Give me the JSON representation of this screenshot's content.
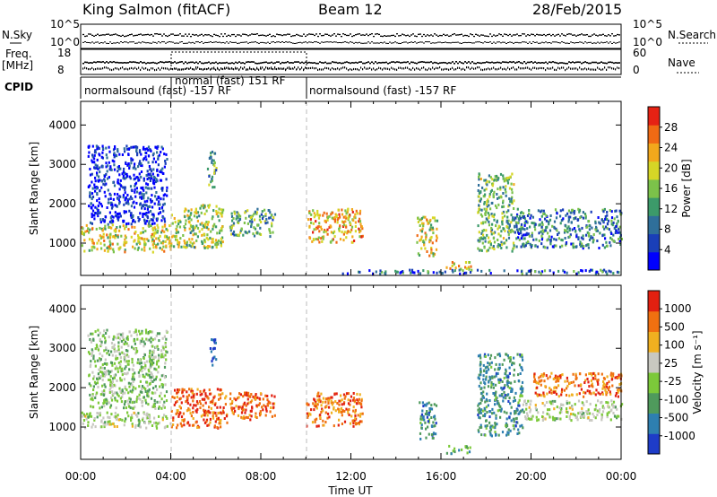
{
  "header": {
    "station": "King Salmon (fitACF)",
    "beam": "Beam 12",
    "date": "28/Feb/2015"
  },
  "summary_panels": {
    "nsky_label": "N.Sky",
    "nsearch_label": "N.Search",
    "nsky_ticks": [
      "10^5",
      "10^0"
    ],
    "nsearch_ticks": [
      "10^5",
      "10^0"
    ],
    "freq_label": "Freq.",
    "freq_unit": "[MHz]",
    "freq_ticks": [
      "18",
      "8"
    ],
    "nave_label": "Nave",
    "nave_ticks": [
      "60",
      "0"
    ],
    "cpid_label": "CPID",
    "cpid_segments": [
      {
        "label": "normalsound (fast) -157 RF",
        "start": 0,
        "end": 4
      },
      {
        "label": "normal (fast) 151 RF",
        "start": 4,
        "end": 10
      },
      {
        "label": "normalsound (fast) -157 RF",
        "start": 10,
        "end": 24
      }
    ]
  },
  "chart_data": [
    {
      "type": "heatmap",
      "name": "power",
      "ylabel": "Slant Range [km]",
      "xlabel": "Time UT",
      "ylim": [
        180,
        4600
      ],
      "xlim": [
        0,
        24
      ],
      "yticks": [
        "1000",
        "2000",
        "3000",
        "4000"
      ],
      "xticks": [
        "00:00",
        "04:00",
        "08:00",
        "12:00",
        "16:00",
        "20:00",
        "00:00"
      ],
      "colorbar": {
        "label": "Power [dB]",
        "ticks": [
          "4",
          "8",
          "12",
          "16",
          "20",
          "24",
          "28"
        ],
        "colors": [
          "#0000ff",
          "#1a3fb8",
          "#2f6f9a",
          "#3c9a6a",
          "#7cc24a",
          "#d6d626",
          "#f2a81c",
          "#f06a14",
          "#e62214"
        ]
      },
      "regions": [
        {
          "t0": 0.0,
          "t1": 4.0,
          "r0": 800,
          "r1": 1500,
          "level": 0.6
        },
        {
          "t0": 0.3,
          "t1": 3.8,
          "r0": 1500,
          "r1": 3500,
          "level": 0.1
        },
        {
          "t0": 4.0,
          "t1": 6.3,
          "r0": 900,
          "r1": 2000,
          "level": 0.55
        },
        {
          "t0": 5.6,
          "t1": 6.0,
          "r0": 2400,
          "r1": 3400,
          "level": 0.4
        },
        {
          "t0": 6.6,
          "t1": 8.6,
          "r0": 1200,
          "r1": 1900,
          "level": 0.4
        },
        {
          "t0": 10.0,
          "t1": 12.5,
          "r0": 1050,
          "r1": 1900,
          "level": 0.7
        },
        {
          "t0": 14.9,
          "t1": 15.8,
          "r0": 700,
          "r1": 1700,
          "level": 0.6
        },
        {
          "t0": 16.2,
          "t1": 17.3,
          "r0": 350,
          "r1": 550,
          "level": 0.7
        },
        {
          "t0": 17.6,
          "t1": 19.2,
          "r0": 800,
          "r1": 2800,
          "level": 0.45
        },
        {
          "t0": 19.2,
          "t1": 24.0,
          "r0": 900,
          "r1": 1900,
          "level": 0.3
        },
        {
          "t0": 11.5,
          "t1": 24.0,
          "r0": 250,
          "r1": 350,
          "level": 0.25
        }
      ]
    },
    {
      "type": "heatmap",
      "name": "velocity",
      "ylabel": "Slant Range [km]",
      "xlabel": "Time UT",
      "ylim": [
        180,
        4600
      ],
      "xlim": [
        0,
        24
      ],
      "yticks": [
        "1000",
        "2000",
        "3000",
        "4000"
      ],
      "xticks": [
        "00:00",
        "04:00",
        "08:00",
        "12:00",
        "16:00",
        "20:00",
        "00:00"
      ],
      "colorbar": {
        "label": "Velocity [m s⁻¹]",
        "ticks": [
          "1000",
          "500",
          "100",
          "25",
          "-25",
          "-100",
          "-500",
          "-1000"
        ],
        "colors": [
          "#1e3cc8",
          "#2e7fb0",
          "#4f9a5c",
          "#7cc93a",
          "#c8c8c0",
          "#f0b020",
          "#f07010",
          "#e22010"
        ]
      },
      "regions": [
        {
          "t0": 0.0,
          "t1": 4.0,
          "r0": 1000,
          "r1": 1400,
          "level": 0.5
        },
        {
          "t0": 0.3,
          "t1": 3.8,
          "r0": 1500,
          "r1": 3500,
          "level": 0.45
        },
        {
          "t0": 4.0,
          "t1": 6.5,
          "r0": 1000,
          "r1": 2000,
          "level": 0.85
        },
        {
          "t0": 5.7,
          "t1": 6.0,
          "r0": 2600,
          "r1": 3400,
          "level": 0.1
        },
        {
          "t0": 6.6,
          "t1": 8.6,
          "r0": 1200,
          "r1": 1900,
          "level": 0.85
        },
        {
          "t0": 10.0,
          "t1": 12.5,
          "r0": 1050,
          "r1": 1900,
          "level": 0.8
        },
        {
          "t0": 15.0,
          "t1": 15.8,
          "r0": 700,
          "r1": 1700,
          "level": 0.25
        },
        {
          "t0": 16.2,
          "t1": 17.3,
          "r0": 350,
          "r1": 550,
          "level": 0.35
        },
        {
          "t0": 17.6,
          "t1": 19.6,
          "r0": 800,
          "r1": 2900,
          "level": 0.25
        },
        {
          "t0": 19.6,
          "t1": 24.0,
          "r0": 1200,
          "r1": 1700,
          "level": 0.5
        },
        {
          "t0": 20.0,
          "t1": 24.0,
          "r0": 1800,
          "r1": 2400,
          "level": 0.8
        }
      ]
    }
  ]
}
